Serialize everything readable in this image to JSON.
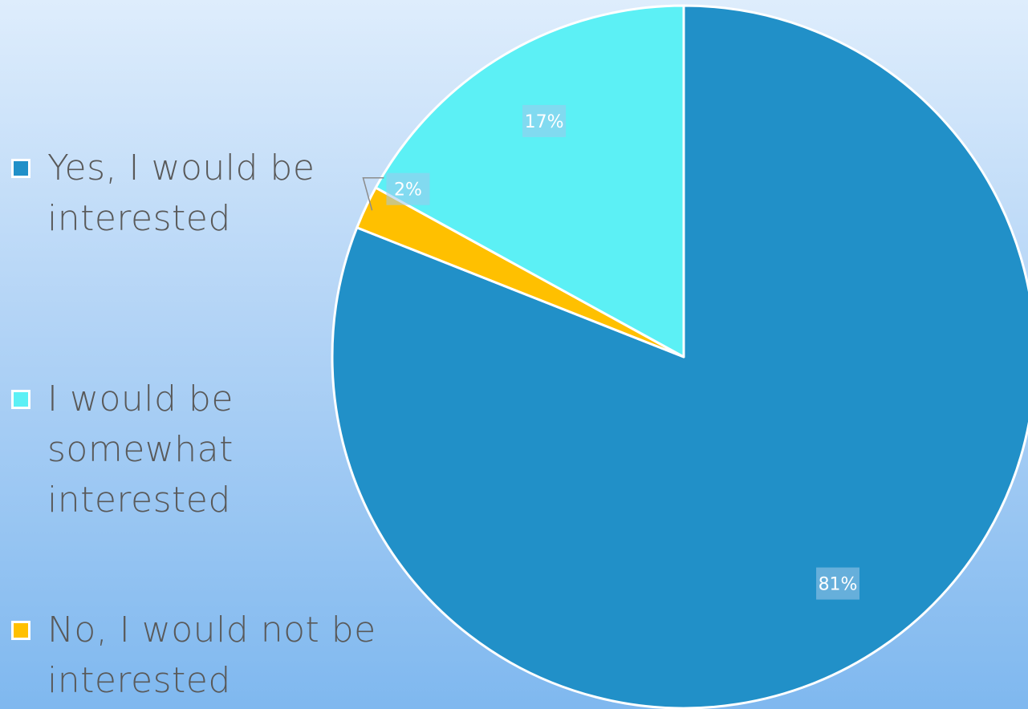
{
  "chart_data": {
    "type": "pie",
    "title": "",
    "legend_position": "left",
    "start_angle_deg": 0,
    "direction": "clockwise",
    "series": [
      {
        "values": [
          81,
          2,
          17
        ],
        "categories": [
          "Yes, I would be interested",
          "No, I would not be interested",
          "I would be somewhat interested"
        ],
        "colors": [
          "#2190c8",
          "#ffc000",
          "#5cf0f5"
        ],
        "data_labels": [
          "81%",
          "2%",
          "17%"
        ]
      }
    ]
  },
  "legend": {
    "items": [
      {
        "label_line1": "Yes, I would be",
        "label_line2": "interested",
        "label_line3": "",
        "color": "#2190c8"
      },
      {
        "label_line1": "I would be",
        "label_line2": "somewhat",
        "label_line3": "interested",
        "color": "#5cf0f5"
      },
      {
        "label_line1": "No, I would not be",
        "label_line2": "interested",
        "label_line3": "",
        "color": "#ffc000"
      }
    ]
  }
}
